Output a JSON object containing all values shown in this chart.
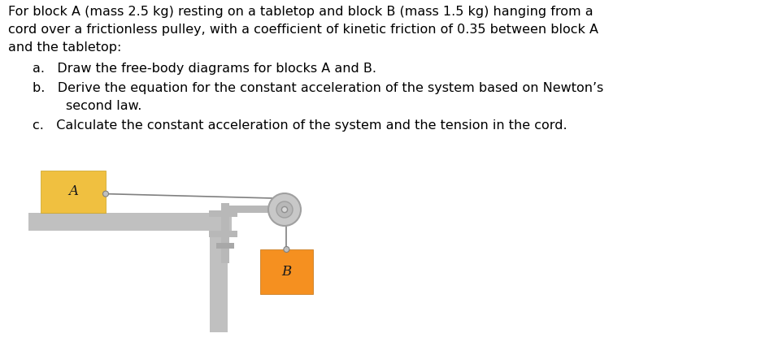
{
  "line1": "For block A (mass 2.5 kg) resting on a tabletop and block B (mass 1.5 kg) hanging from a",
  "line2": "cord over a frictionless pulley, with a coefficient of kinetic friction of 0.35 between block A",
  "line3": "and the tabletop:",
  "item_a": "a.   Draw the free-body diagrams for blocks A and B.",
  "item_b1": "b.   Derive the equation for the constant acceleration of the system based on Newton’s",
  "item_b2": "        second law.",
  "item_c": "c.   Calculate the constant acceleration of the system and the tension in the cord.",
  "block_A_color": "#F0C040",
  "block_B_color": "#F59020",
  "table_color": "#C0C0C0",
  "clamp_color": "#B8B8B8",
  "pulley_outer_color": "#C8C8C8",
  "pulley_inner_color": "#D0D0D0",
  "cord_color": "#808080",
  "label_A": "A",
  "label_B": "B",
  "bg_color": "#FFFFFF",
  "text_color": "#000000",
  "font_size": 11.5
}
